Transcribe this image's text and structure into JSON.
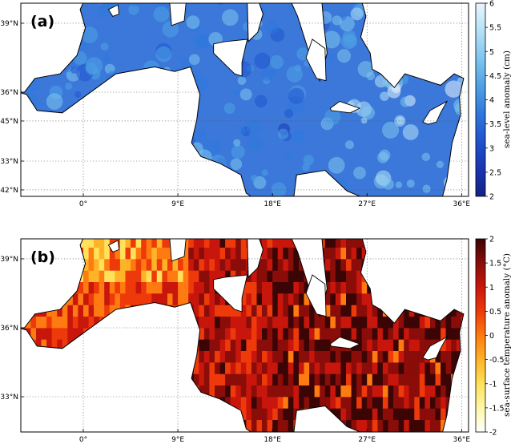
{
  "panels": [
    {
      "id": "a",
      "label": "(a)",
      "variable": "sea-level anomaly",
      "colorbar": {
        "label": "sea-level anomaly (cm)",
        "min": 2,
        "max": 6,
        "ticks": [
          "6",
          "5.5",
          "5",
          "4.5",
          "4",
          "3.5",
          "3",
          "2.5",
          "2"
        ],
        "colors": [
          "#e8f6fd",
          "#b5e1f7",
          "#7fc6ef",
          "#4fa1e6",
          "#2f78dc",
          "#2053cf",
          "#1a35b4",
          "#142086"
        ]
      }
    },
    {
      "id": "b",
      "label": "(b)",
      "variable": "sea-surface temperature anomaly",
      "colorbar": {
        "label": "sea-surface temperature anomaly (°C)",
        "min": -2,
        "max": 2,
        "ticks": [
          "2",
          "1.5",
          "1",
          "0.5",
          "0",
          "-0.5",
          "-1",
          "-1.5",
          "-2"
        ],
        "colors": [
          "#ffffff",
          "#fff7a8",
          "#ffe15a",
          "#ffb327",
          "#ff7a10",
          "#ee3a0a",
          "#c9160c",
          "#8a0d09",
          "#3a0504"
        ]
      }
    }
  ],
  "axes": {
    "lon_labels": [
      "0°",
      "9°E",
      "18°E",
      "27°E",
      "36°E"
    ],
    "lat_labels": [
      "45°N",
      "42°N",
      "39°N",
      "36°N",
      "33°N"
    ],
    "lon_range": [
      -7,
      37
    ],
    "lat_range": [
      30,
      46.5
    ]
  }
}
